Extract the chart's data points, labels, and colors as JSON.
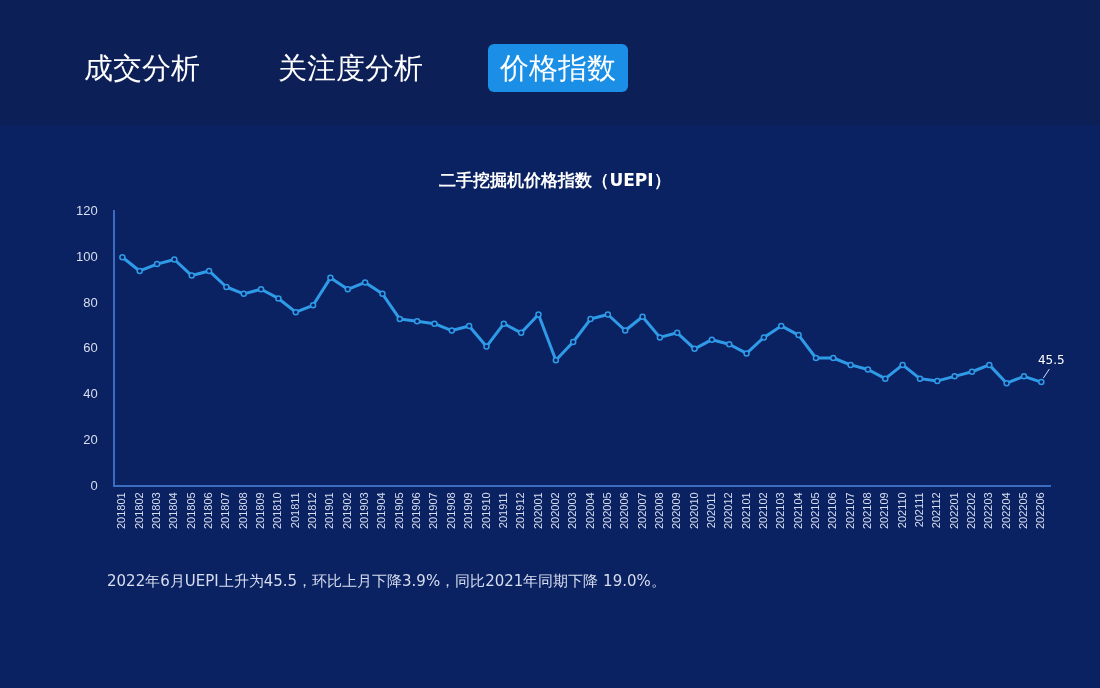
{
  "chart_data": {
    "type": "line",
    "title": "二手挖掘机价格指数（UEPI）",
    "categories": [
      "201801",
      "201802",
      "201803",
      "201804",
      "201805",
      "201806",
      "201807",
      "201808",
      "201809",
      "201810",
      "201811",
      "201812",
      "201901",
      "201902",
      "201903",
      "201904",
      "201905",
      "201906",
      "201907",
      "201908",
      "201909",
      "201910",
      "201911",
      "201912",
      "202001",
      "202002",
      "202003",
      "202004",
      "202005",
      "202006",
      "202007",
      "202008",
      "202009",
      "202010",
      "202011",
      "202012",
      "202101",
      "202102",
      "202103",
      "202104",
      "202105",
      "202106",
      "202107",
      "202108",
      "202109",
      "202110",
      "202111",
      "202112",
      "202201",
      "202202",
      "202203",
      "202204",
      "202205",
      "202206"
    ],
    "series": [
      {
        "color": "#2f9be8",
        "values": [
          100,
          94,
          97,
          99,
          92,
          94,
          87,
          84,
          86,
          82,
          76,
          79,
          91,
          86,
          89,
          84,
          73,
          72,
          71,
          68,
          70,
          61,
          71,
          67,
          75,
          55,
          63,
          73,
          75,
          68,
          74,
          65,
          67,
          60,
          64,
          62,
          58,
          65,
          70,
          66,
          56,
          56,
          53,
          51,
          47,
          53,
          47,
          46,
          48,
          50,
          53,
          45,
          48,
          45.5
        ],
        "value_labels": [
          null,
          null,
          null,
          null,
          null,
          null,
          null,
          null,
          null,
          null,
          null,
          null,
          null,
          null,
          null,
          null,
          null,
          null,
          null,
          null,
          null,
          null,
          null,
          null,
          null,
          null,
          null,
          null,
          null,
          null,
          null,
          null,
          null,
          null,
          null,
          null,
          null,
          null,
          null,
          null,
          null,
          null,
          null,
          null,
          null,
          null,
          null,
          null,
          null,
          null,
          null,
          null,
          null,
          "45.5"
        ]
      }
    ],
    "ylim": [
      0,
      120
    ],
    "yticks": [
      0,
      20,
      40,
      60,
      80,
      100,
      120
    ],
    "grid": false,
    "legend": false,
    "marker": "circle",
    "line_style": "solid",
    "annotations": [
      "成交分析",
      "关注度分析",
      "价格指数",
      "2022年6月UEPI上升为45.5，环比上月下降3.9%，同比2021年同期下降 19.0%。"
    ]
  }
}
